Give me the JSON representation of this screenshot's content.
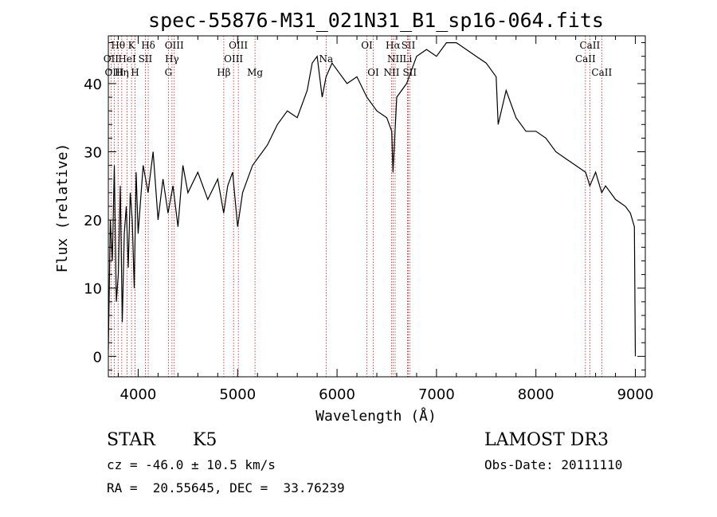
{
  "chart_data": {
    "type": "line",
    "title": "spec-55876-M31_021N31_B1_sp16-064.fits",
    "xlabel": "Wavelength (Å)",
    "ylabel": "Flux (relative)",
    "xlim": [
      3700,
      9100
    ],
    "ylim": [
      -3,
      47
    ],
    "x_ticks": [
      4000,
      5000,
      6000,
      7000,
      8000,
      9000
    ],
    "y_ticks": [
      0,
      10,
      20,
      30,
      40
    ],
    "grid": false,
    "series": [
      {
        "x": [
          3700,
          3720,
          3740,
          3760,
          3780,
          3800,
          3820,
          3840,
          3860,
          3880,
          3900,
          3920,
          3940,
          3960,
          3980,
          4000,
          4050,
          4100,
          4150,
          4200,
          4250,
          4300,
          4350,
          4400,
          4450,
          4500,
          4600,
          4700,
          4800,
          4860,
          4900,
          4950,
          5000,
          5050,
          5100,
          5150,
          5200,
          5300,
          5400,
          5500,
          5600,
          5700,
          5750,
          5800,
          5850,
          5890,
          5950,
          6000,
          6100,
          6200,
          6300,
          6400,
          6500,
          6550,
          6563,
          6600,
          6700,
          6800,
          6900,
          7000,
          7100,
          7200,
          7300,
          7400,
          7500,
          7600,
          7620,
          7700,
          7800,
          7900,
          8000,
          8100,
          8200,
          8300,
          8400,
          8500,
          8542,
          8600,
          8662,
          8700,
          8800,
          8900,
          8950,
          8990,
          9000
        ],
        "values": [
          1,
          20,
          14,
          28,
          8,
          12,
          25,
          5,
          18,
          22,
          13,
          24,
          20,
          10,
          27,
          18,
          28,
          24,
          30,
          20,
          26,
          21,
          25,
          19,
          28,
          24,
          27,
          23,
          26,
          21,
          25,
          27,
          19,
          24,
          26,
          28,
          29,
          31,
          34,
          36,
          35,
          39,
          43,
          44,
          38,
          41,
          43,
          42,
          40,
          41,
          38,
          36,
          35,
          33,
          27,
          38,
          40,
          44,
          45,
          44,
          46,
          46,
          45,
          44,
          43,
          41,
          34,
          39,
          35,
          33,
          33,
          32,
          30,
          29,
          28,
          27,
          25,
          27,
          24,
          25,
          23,
          22,
          21,
          19,
          0
        ]
      }
    ],
    "spectral_lines": [
      {
        "label": "Hθ",
        "wavelength": 3798,
        "row": 0
      },
      {
        "label": "K",
        "wavelength": 3933,
        "row": 0
      },
      {
        "label": "Hδ",
        "wavelength": 4101,
        "row": 0
      },
      {
        "label": "OIII",
        "wavelength": 4363,
        "row": 0
      },
      {
        "label": "OIII",
        "wavelength": 5007,
        "row": 0
      },
      {
        "label": "OI",
        "wavelength": 6300,
        "row": 0
      },
      {
        "label": "Hα",
        "wavelength": 6563,
        "row": 0
      },
      {
        "label": "SII",
        "wavelength": 6717,
        "row": 0
      },
      {
        "label": "CaII",
        "wavelength": 8542,
        "row": 0
      },
      {
        "label": "OII",
        "wavelength": 3727,
        "row": 1
      },
      {
        "label": "HeI",
        "wavelength": 3889,
        "row": 1
      },
      {
        "label": "SII",
        "wavelength": 4072,
        "row": 1
      },
      {
        "label": "Hγ",
        "wavelength": 4340,
        "row": 1
      },
      {
        "label": "OIII",
        "wavelength": 4959,
        "row": 1
      },
      {
        "label": "Na",
        "wavelength": 5890,
        "row": 1
      },
      {
        "label": "NII",
        "wavelength": 6584,
        "row": 1
      },
      {
        "label": "Li",
        "wavelength": 6708,
        "row": 1
      },
      {
        "label": "CaII",
        "wavelength": 8498,
        "row": 1
      },
      {
        "label": "OIII",
        "wavelength": 3760,
        "row": 2
      },
      {
        "label": "Hη",
        "wavelength": 3835,
        "row": 2
      },
      {
        "label": "H",
        "wavelength": 3968,
        "row": 2
      },
      {
        "label": "G",
        "wavelength": 4304,
        "row": 2
      },
      {
        "label": "Hβ",
        "wavelength": 4861,
        "row": 2
      },
      {
        "label": "Mg",
        "wavelength": 5175,
        "row": 2
      },
      {
        "label": "OI",
        "wavelength": 6364,
        "row": 2
      },
      {
        "label": "NII",
        "wavelength": 6548,
        "row": 2
      },
      {
        "label": "SII",
        "wavelength": 6731,
        "row": 2
      },
      {
        "label": "CaII",
        "wavelength": 8662,
        "row": 2
      }
    ]
  },
  "info": {
    "class": "STAR",
    "subclass": "K5",
    "survey": "LAMOST DR3",
    "cz": "cz = -46.0 ± 10.5 km/s",
    "obs_date": "Obs-Date: 20111110",
    "radec": "RA =  20.55645, DEC =  33.76239"
  },
  "colors": {
    "spectrum": "#000000",
    "line_markers": "#b22222",
    "background": "#ffffff"
  }
}
